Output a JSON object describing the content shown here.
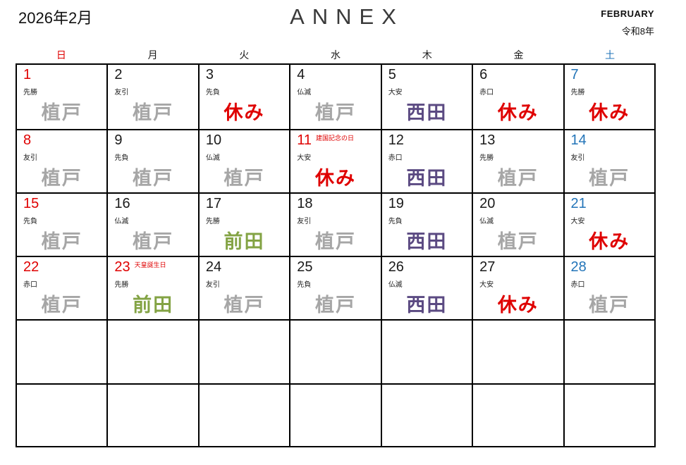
{
  "header": {
    "title_left": "2026年2月",
    "title_center": "ANNEX",
    "month_en": "FEBRUARY",
    "era": "令和8年"
  },
  "weekdays": [
    {
      "label": "日",
      "color": "red"
    },
    {
      "label": "月",
      "color": "black"
    },
    {
      "label": "火",
      "color": "black"
    },
    {
      "label": "水",
      "color": "black"
    },
    {
      "label": "木",
      "color": "black"
    },
    {
      "label": "金",
      "color": "black"
    },
    {
      "label": "土",
      "color": "blue"
    }
  ],
  "colors": {
    "red": "#df0000",
    "blue": "#2274b8",
    "black": "#1a1a1a",
    "gray": "#a6a6a6",
    "purple": "#5b4a82",
    "green": "#83a344"
  },
  "days": [
    {
      "date": "1",
      "date_color": "red",
      "rokuyo": "先勝",
      "holiday": "",
      "name": "植戸",
      "name_color": "gray"
    },
    {
      "date": "2",
      "date_color": "black",
      "rokuyo": "友引",
      "holiday": "",
      "name": "植戸",
      "name_color": "gray"
    },
    {
      "date": "3",
      "date_color": "black",
      "rokuyo": "先負",
      "holiday": "",
      "name": "休み",
      "name_color": "red"
    },
    {
      "date": "4",
      "date_color": "black",
      "rokuyo": "仏滅",
      "holiday": "",
      "name": "植戸",
      "name_color": "gray"
    },
    {
      "date": "5",
      "date_color": "black",
      "rokuyo": "大安",
      "holiday": "",
      "name": "西田",
      "name_color": "purple"
    },
    {
      "date": "6",
      "date_color": "black",
      "rokuyo": "赤口",
      "holiday": "",
      "name": "休み",
      "name_color": "red"
    },
    {
      "date": "7",
      "date_color": "blue",
      "rokuyo": "先勝",
      "holiday": "",
      "name": "休み",
      "name_color": "red"
    },
    {
      "date": "8",
      "date_color": "red",
      "rokuyo": "友引",
      "holiday": "",
      "name": "植戸",
      "name_color": "gray"
    },
    {
      "date": "9",
      "date_color": "black",
      "rokuyo": "先負",
      "holiday": "",
      "name": "植戸",
      "name_color": "gray"
    },
    {
      "date": "10",
      "date_color": "black",
      "rokuyo": "仏滅",
      "holiday": "",
      "name": "植戸",
      "name_color": "gray"
    },
    {
      "date": "11",
      "date_color": "red",
      "rokuyo": "大安",
      "holiday": "建国記念の日",
      "name": "休み",
      "name_color": "red"
    },
    {
      "date": "12",
      "date_color": "black",
      "rokuyo": "赤口",
      "holiday": "",
      "name": "西田",
      "name_color": "purple"
    },
    {
      "date": "13",
      "date_color": "black",
      "rokuyo": "先勝",
      "holiday": "",
      "name": "植戸",
      "name_color": "gray"
    },
    {
      "date": "14",
      "date_color": "blue",
      "rokuyo": "友引",
      "holiday": "",
      "name": "植戸",
      "name_color": "gray"
    },
    {
      "date": "15",
      "date_color": "red",
      "rokuyo": "先負",
      "holiday": "",
      "name": "植戸",
      "name_color": "gray"
    },
    {
      "date": "16",
      "date_color": "black",
      "rokuyo": "仏滅",
      "holiday": "",
      "name": "植戸",
      "name_color": "gray"
    },
    {
      "date": "17",
      "date_color": "black",
      "rokuyo": "先勝",
      "holiday": "",
      "name": "前田",
      "name_color": "green"
    },
    {
      "date": "18",
      "date_color": "black",
      "rokuyo": "友引",
      "holiday": "",
      "name": "植戸",
      "name_color": "gray"
    },
    {
      "date": "19",
      "date_color": "black",
      "rokuyo": "先負",
      "holiday": "",
      "name": "西田",
      "name_color": "purple"
    },
    {
      "date": "20",
      "date_color": "black",
      "rokuyo": "仏滅",
      "holiday": "",
      "name": "植戸",
      "name_color": "gray"
    },
    {
      "date": "21",
      "date_color": "blue",
      "rokuyo": "大安",
      "holiday": "",
      "name": "休み",
      "name_color": "red"
    },
    {
      "date": "22",
      "date_color": "red",
      "rokuyo": "赤口",
      "holiday": "",
      "name": "植戸",
      "name_color": "gray"
    },
    {
      "date": "23",
      "date_color": "red",
      "rokuyo": "先勝",
      "holiday": "天皇誕生日",
      "name": "前田",
      "name_color": "green"
    },
    {
      "date": "24",
      "date_color": "black",
      "rokuyo": "友引",
      "holiday": "",
      "name": "植戸",
      "name_color": "gray"
    },
    {
      "date": "25",
      "date_color": "black",
      "rokuyo": "先負",
      "holiday": "",
      "name": "植戸",
      "name_color": "gray"
    },
    {
      "date": "26",
      "date_color": "black",
      "rokuyo": "仏滅",
      "holiday": "",
      "name": "西田",
      "name_color": "purple"
    },
    {
      "date": "27",
      "date_color": "black",
      "rokuyo": "大安",
      "holiday": "",
      "name": "休み",
      "name_color": "red"
    },
    {
      "date": "28",
      "date_color": "blue",
      "rokuyo": "赤口",
      "holiday": "",
      "name": "植戸",
      "name_color": "gray"
    },
    {
      "date": "",
      "date_color": "black",
      "rokuyo": "",
      "holiday": "",
      "name": "",
      "name_color": "black"
    },
    {
      "date": "",
      "date_color": "black",
      "rokuyo": "",
      "holiday": "",
      "name": "",
      "name_color": "black"
    },
    {
      "date": "",
      "date_color": "black",
      "rokuyo": "",
      "holiday": "",
      "name": "",
      "name_color": "black"
    },
    {
      "date": "",
      "date_color": "black",
      "rokuyo": "",
      "holiday": "",
      "name": "",
      "name_color": "black"
    },
    {
      "date": "",
      "date_color": "black",
      "rokuyo": "",
      "holiday": "",
      "name": "",
      "name_color": "black"
    },
    {
      "date": "",
      "date_color": "black",
      "rokuyo": "",
      "holiday": "",
      "name": "",
      "name_color": "black"
    },
    {
      "date": "",
      "date_color": "black",
      "rokuyo": "",
      "holiday": "",
      "name": "",
      "name_color": "black"
    },
    {
      "date": "",
      "date_color": "black",
      "rokuyo": "",
      "holiday": "",
      "name": "",
      "name_color": "black"
    },
    {
      "date": "",
      "date_color": "black",
      "rokuyo": "",
      "holiday": "",
      "name": "",
      "name_color": "black"
    },
    {
      "date": "",
      "date_color": "black",
      "rokuyo": "",
      "holiday": "",
      "name": "",
      "name_color": "black"
    },
    {
      "date": "",
      "date_color": "black",
      "rokuyo": "",
      "holiday": "",
      "name": "",
      "name_color": "black"
    },
    {
      "date": "",
      "date_color": "black",
      "rokuyo": "",
      "holiday": "",
      "name": "",
      "name_color": "black"
    },
    {
      "date": "",
      "date_color": "black",
      "rokuyo": "",
      "holiday": "",
      "name": "",
      "name_color": "black"
    },
    {
      "date": "",
      "date_color": "black",
      "rokuyo": "",
      "holiday": "",
      "name": "",
      "name_color": "black"
    }
  ],
  "row_heights": [
    "93px",
    "90px",
    "90px",
    "90px",
    "91px",
    "89px"
  ]
}
